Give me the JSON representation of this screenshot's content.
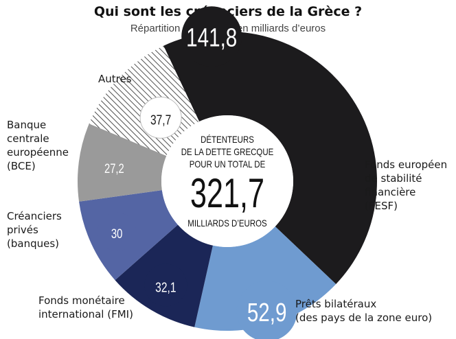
{
  "title": "Qui sont les créanciers de la Grèce ?",
  "subtitle": "Répartition de la dette, en milliards d’euros",
  "center": {
    "line1": "DÉTENTEURS",
    "line2": "DE LA DETTE GRECQUE",
    "line3": "POUR UN TOTAL DE",
    "total": "321,7",
    "line4": "MILLIARDS D’EUROS"
  },
  "chart_data": {
    "type": "pie",
    "total": 321.7,
    "slices": [
      {
        "label_lines": [
          "Fonds européen",
          "de stabilité",
          "financière",
          "(FESF)"
        ],
        "value": 141.8,
        "display": "141,8",
        "color": "#1c1b1d",
        "text_color": "#ffffff"
      },
      {
        "label_lines": [
          "Prêts bilatéraux",
          "(des pays de la zone euro)"
        ],
        "value": 52.9,
        "display": "52,9",
        "color": "#6f9bd0",
        "text_color": "#ffffff"
      },
      {
        "label_lines": [
          "Fonds monétaire",
          "international (FMI)"
        ],
        "value": 32.1,
        "display": "32,1",
        "color": "#1b2657",
        "text_color": "#ffffff"
      },
      {
        "label_lines": [
          "Créanciers",
          "privés",
          "(banques)"
        ],
        "value": 30,
        "display": "30",
        "color": "#5465a4",
        "text_color": "#ffffff"
      },
      {
        "label_lines": [
          "Banque",
          "centrale",
          "européenne",
          "(BCE)"
        ],
        "value": 27.2,
        "display": "27,2",
        "color": "#9a9a9a",
        "text_color": "#ffffff"
      },
      {
        "label_lines": [
          "Autres"
        ],
        "value": 37.7,
        "display": "37,7",
        "color": "hatched",
        "text_color": "#1a1a1a"
      }
    ]
  }
}
